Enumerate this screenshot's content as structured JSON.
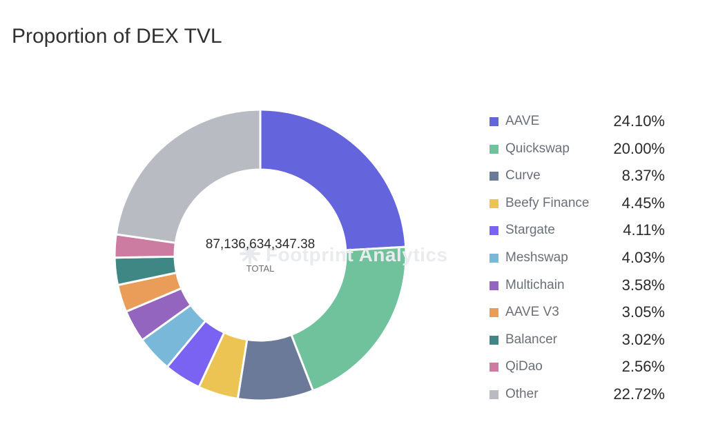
{
  "page": {
    "title": "Proportion of DEX TVL",
    "watermark": "Footprint Analytics"
  },
  "chart_data": {
    "type": "pie",
    "title": "Proportion of DEX TVL",
    "center_value": "87,136,634,347.38",
    "center_label": "TOTAL",
    "legend_position": "right",
    "slices": [
      {
        "label": "AAVE",
        "value": 24.1,
        "display": "24.10%",
        "color": "#6464dc"
      },
      {
        "label": "Quickswap",
        "value": 20.0,
        "display": "20.00%",
        "color": "#6fc29b"
      },
      {
        "label": "Curve",
        "value": 8.37,
        "display": "8.37%",
        "color": "#6c7a99"
      },
      {
        "label": "Beefy Finance",
        "value": 4.45,
        "display": "4.45%",
        "color": "#ecc453"
      },
      {
        "label": "Stargate",
        "value": 4.11,
        "display": "4.11%",
        "color": "#7a63f2"
      },
      {
        "label": "Meshswap",
        "value": 4.03,
        "display": "4.03%",
        "color": "#79b8d8"
      },
      {
        "label": "Multichain",
        "value": 3.58,
        "display": "3.58%",
        "color": "#9465be"
      },
      {
        "label": "AAVE V3",
        "value": 3.05,
        "display": "3.05%",
        "color": "#e99d58"
      },
      {
        "label": "Balancer",
        "value": 3.02,
        "display": "3.02%",
        "color": "#3f8784"
      },
      {
        "label": "QiDao",
        "value": 2.56,
        "display": "2.56%",
        "color": "#cc7ba1"
      },
      {
        "label": "Other",
        "value": 22.72,
        "display": "22.72%",
        "color": "#b8bbc2"
      }
    ]
  }
}
